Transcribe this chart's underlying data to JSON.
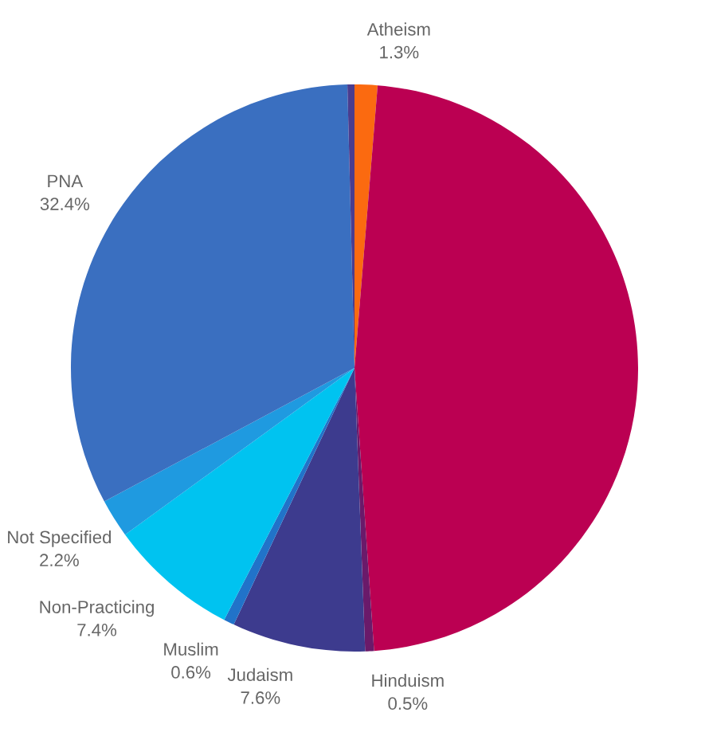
{
  "chart_data": {
    "type": "pie",
    "categories": [
      "Atheism",
      null,
      "Hinduism",
      "Judaism",
      "Muslim",
      "Non-Practicing",
      "Not Specified",
      "PNA",
      null
    ],
    "values": [
      1.3,
      47.6,
      0.5,
      7.6,
      0.6,
      7.4,
      2.2,
      32.4,
      0.4
    ],
    "colors": [
      "#fb6a10",
      "#bb0052",
      "#6a1a6a",
      "#3d3b8e",
      "#2173c9",
      "#00c3f0",
      "#1f9ae0",
      "#3a6fc0",
      "#4a3d8f"
    ],
    "value_labels": [
      "1.3%",
      null,
      "0.5%",
      "7.6%",
      "0.6%",
      "7.4%",
      "2.2%",
      "32.4%",
      null
    ],
    "legend": false
  }
}
